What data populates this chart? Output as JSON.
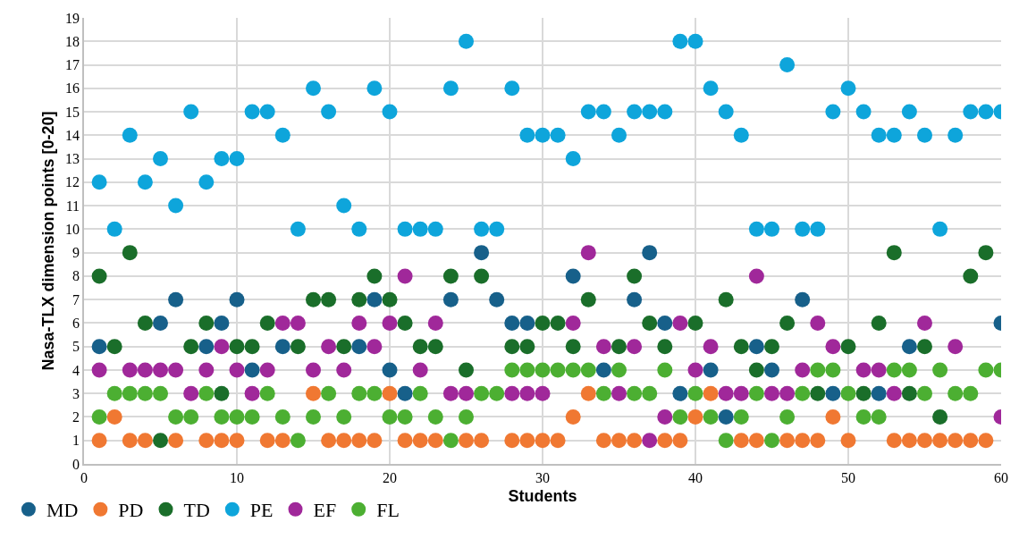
{
  "chart_data": {
    "type": "scatter",
    "xlabel": "Students",
    "ylabel": "Nasa-TLX dimension points [0-20]",
    "x": [
      1,
      2,
      3,
      4,
      5,
      6,
      7,
      8,
      9,
      10,
      11,
      12,
      13,
      14,
      15,
      16,
      17,
      18,
      19,
      20,
      21,
      22,
      23,
      24,
      25,
      26,
      27,
      28,
      29,
      30,
      31,
      32,
      33,
      34,
      35,
      36,
      37,
      38,
      39,
      40,
      41,
      42,
      43,
      44,
      45,
      46,
      47,
      48,
      49,
      50,
      51,
      52,
      53,
      54,
      55,
      56,
      57,
      58,
      59,
      60
    ],
    "xlim": [
      0,
      60
    ],
    "xticks": [
      0,
      10,
      20,
      30,
      40,
      50,
      60
    ],
    "ylim": [
      0,
      19
    ],
    "yticks": [
      0,
      1,
      2,
      3,
      4,
      5,
      6,
      7,
      8,
      9,
      10,
      11,
      12,
      13,
      14,
      15,
      16,
      17,
      18,
      19
    ],
    "grid": true,
    "legend": "bottom left",
    "marker": "circle",
    "series": [
      {
        "name": "MD",
        "color": "#17608a",
        "values": [
          5,
          null,
          null,
          null,
          6,
          7,
          null,
          5,
          6,
          7,
          4,
          null,
          5,
          null,
          null,
          null,
          null,
          5,
          7,
          4,
          3,
          null,
          null,
          7,
          null,
          9,
          7,
          6,
          6,
          null,
          null,
          8,
          null,
          4,
          null,
          7,
          9,
          6,
          3,
          null,
          4,
          2,
          null,
          5,
          4,
          null,
          7,
          null,
          3,
          null,
          null,
          3,
          null,
          5,
          null,
          null,
          null,
          null,
          null,
          6
        ]
      },
      {
        "name": "PD",
        "color": "#f07832",
        "values": [
          1,
          2,
          1,
          1,
          null,
          1,
          null,
          1,
          1,
          1,
          null,
          1,
          1,
          null,
          3,
          1,
          1,
          1,
          1,
          3,
          1,
          1,
          1,
          null,
          1,
          1,
          null,
          1,
          1,
          1,
          1,
          2,
          3,
          1,
          1,
          1,
          null,
          1,
          1,
          2,
          3,
          null,
          1,
          1,
          null,
          1,
          1,
          1,
          2,
          1,
          null,
          null,
          1,
          1,
          1,
          1,
          1,
          1,
          1,
          null
        ]
      },
      {
        "name": "TD",
        "color": "#1a6e2a",
        "values": [
          8,
          5,
          9,
          6,
          1,
          null,
          5,
          6,
          3,
          5,
          5,
          6,
          null,
          5,
          7,
          7,
          5,
          7,
          8,
          7,
          6,
          5,
          5,
          8,
          4,
          8,
          null,
          5,
          5,
          6,
          6,
          5,
          7,
          null,
          5,
          8,
          6,
          5,
          null,
          6,
          null,
          7,
          5,
          4,
          5,
          6,
          null,
          3,
          null,
          5,
          3,
          6,
          9,
          3,
          5,
          2,
          null,
          8,
          9,
          null
        ]
      },
      {
        "name": "PE",
        "color": "#0ea5db",
        "values": [
          12,
          10,
          14,
          12,
          13,
          11,
          15,
          12,
          13,
          13,
          15,
          15,
          14,
          10,
          16,
          15,
          11,
          10,
          16,
          15,
          10,
          10,
          10,
          16,
          18,
          10,
          10,
          16,
          14,
          14,
          14,
          13,
          15,
          15,
          14,
          15,
          15,
          15,
          18,
          18,
          16,
          15,
          14,
          10,
          10,
          17,
          10,
          10,
          15,
          16,
          15,
          14,
          14,
          15,
          14,
          10,
          14,
          15,
          15,
          15
        ]
      },
      {
        "name": "EF",
        "color": "#a0289a",
        "values": [
          4,
          null,
          4,
          4,
          4,
          4,
          3,
          4,
          5,
          4,
          3,
          4,
          6,
          6,
          4,
          5,
          4,
          6,
          5,
          6,
          8,
          4,
          6,
          3,
          3,
          null,
          null,
          3,
          3,
          3,
          null,
          6,
          9,
          5,
          3,
          5,
          1,
          2,
          6,
          4,
          5,
          3,
          3,
          8,
          3,
          3,
          4,
          6,
          5,
          null,
          4,
          4,
          3,
          null,
          6,
          null,
          5,
          null,
          null,
          2
        ]
      },
      {
        "name": "FL",
        "color": "#4caf32",
        "values": [
          2,
          3,
          3,
          3,
          3,
          2,
          2,
          3,
          2,
          2,
          2,
          3,
          2,
          1,
          2,
          3,
          2,
          3,
          3,
          2,
          2,
          3,
          2,
          1,
          2,
          3,
          3,
          4,
          4,
          4,
          4,
          4,
          4,
          3,
          4,
          3,
          3,
          4,
          2,
          3,
          2,
          1,
          2,
          3,
          1,
          2,
          3,
          4,
          4,
          3,
          2,
          2,
          4,
          4,
          3,
          4,
          3,
          3,
          4,
          4
        ]
      }
    ]
  }
}
